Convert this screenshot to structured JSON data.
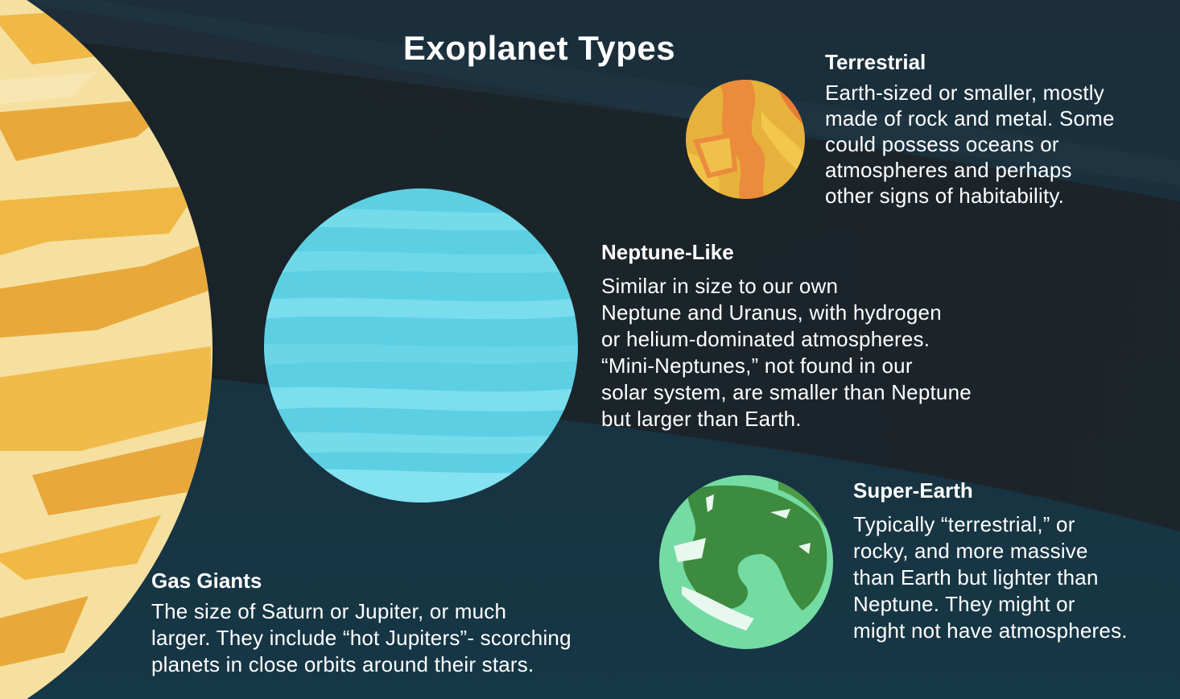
{
  "title": "Exoplanet Types",
  "colors": {
    "background_dark": "#14242f",
    "background_band": "#1f2a30",
    "gas_giant": "#f1c55a",
    "neptune_like": "#5fd3e6",
    "terrestrial": "#e9a13a",
    "super_earth": "#6fd3a0"
  },
  "terrestrial": {
    "heading": "Terrestrial",
    "lines": [
      "Earth-sized or smaller, mostly",
      "made of rock and metal. Some",
      "could possess oceans or",
      "atmospheres and perhaps",
      "other signs of habitability."
    ]
  },
  "neptune_like": {
    "heading": "Neptune-Like",
    "lines": [
      "Similar in size to our own",
      "Neptune and Uranus, with hydrogen",
      "or helium-dominated atmospheres.",
      "“Mini-Neptunes,” not found in our",
      "solar system, are smaller than Neptune",
      "but larger than Earth."
    ]
  },
  "super_earth": {
    "heading": "Super-Earth",
    "lines": [
      "Typically “terrestrial,” or",
      "rocky, and more massive",
      "than Earth but lighter than",
      "Neptune. They might or",
      "might not have atmospheres."
    ]
  },
  "gas_giants": {
    "heading": "Gas Giants",
    "lines": [
      "The size of Saturn or Jupiter, or much",
      "larger. They include “hot Jupiters”-  scorching",
      "planets in close orbits around their stars."
    ]
  }
}
